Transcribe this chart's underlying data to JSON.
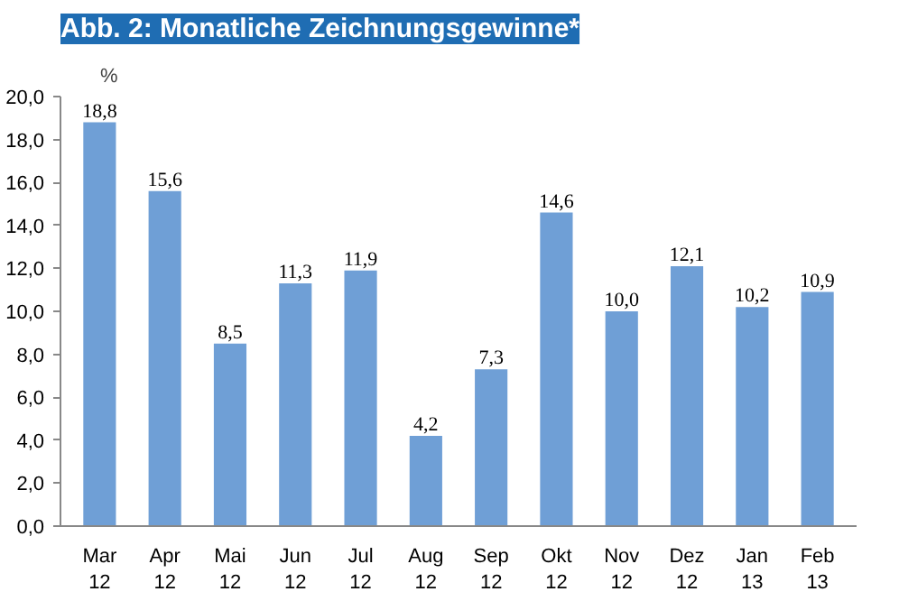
{
  "chart_data": {
    "type": "bar",
    "title": "Abb. 2: Monatliche Zeichnungsgewinne*",
    "ylabel": "%",
    "categories": [
      "Mar\n12",
      "Apr\n12",
      "Mai\n12",
      "Jun\n12",
      "Jul\n12",
      "Aug\n12",
      "Sep\n12",
      "Okt\n12",
      "Nov\n12",
      "Dez\n12",
      "Jan\n13",
      "Feb\n13"
    ],
    "values": [
      18.8,
      15.6,
      8.5,
      11.3,
      11.9,
      4.2,
      7.3,
      14.6,
      10.0,
      12.1,
      10.2,
      10.9
    ],
    "value_labels": [
      "18,8",
      "15,6",
      "8,5",
      "11,3",
      "11,9",
      "4,2",
      "7,3",
      "14,6",
      "10,0",
      "12,1",
      "10,2",
      "10,9"
    ],
    "color": "#6f9fd6",
    "ylim": [
      0,
      20
    ],
    "yticks": [
      {
        "value": 0,
        "label": "0,0"
      },
      {
        "value": 2,
        "label": "2,0"
      },
      {
        "value": 4,
        "label": "4,0"
      },
      {
        "value": 6,
        "label": "6,0"
      },
      {
        "value": 8,
        "label": "8,0"
      },
      {
        "value": 10,
        "label": "10,0"
      },
      {
        "value": 12,
        "label": "12,0"
      },
      {
        "value": 14,
        "label": "14,0"
      },
      {
        "value": 16,
        "label": "16,0"
      },
      {
        "value": 18,
        "label": "18,0"
      },
      {
        "value": 20,
        "label": "20,0"
      }
    ],
    "grid": false
  }
}
